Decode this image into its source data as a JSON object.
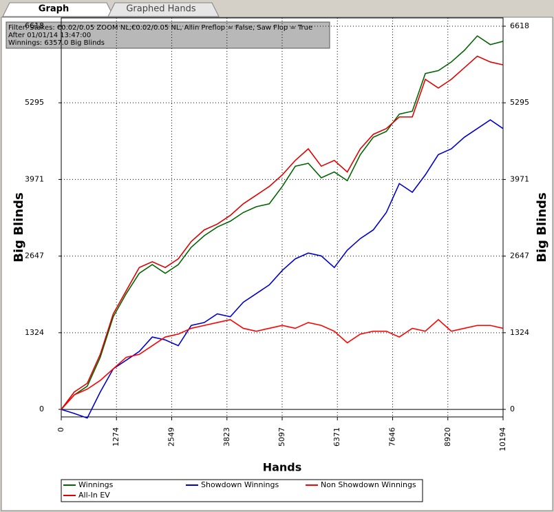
{
  "tabs": [
    "Graph",
    "Graphed Hands"
  ],
  "filter": [
    "Filter: Stakes: €0.02/0.05 ZOOM NL,€0.02/0.05 NL, Allin Preflop = False, Saw Flop = True",
    "After 01/01/14 13:47:00",
    "Winnings: 6357.0 Big Blinds"
  ],
  "chart_data": {
    "type": "line",
    "xlabel": "Hands",
    "ylabel": "Big Blinds",
    "y2label": "Big Blinds",
    "x": [
      0,
      300,
      600,
      900,
      1200,
      1500,
      1800,
      2100,
      2400,
      2700,
      3000,
      3300,
      3600,
      3900,
      4200,
      4500,
      4800,
      5100,
      5400,
      5700,
      6000,
      6300,
      6600,
      6900,
      7200,
      7500,
      7800,
      8100,
      8400,
      8700,
      9000,
      9300,
      9600,
      9900,
      10194
    ],
    "series": [
      {
        "name": "Winnings",
        "color": "#006400",
        "values": [
          0,
          250,
          400,
          900,
          1600,
          2000,
          2350,
          2500,
          2350,
          2500,
          2800,
          3000,
          3150,
          3250,
          3400,
          3500,
          3550,
          3850,
          4200,
          4250,
          4000,
          4100,
          3950,
          4400,
          4700,
          4800,
          5100,
          5150,
          5800,
          5850,
          6000,
          6200,
          6450,
          6300,
          6357
        ]
      },
      {
        "name": "Showdown Winnings",
        "color": "#0000cc",
        "values": [
          0,
          -70,
          -150,
          300,
          700,
          850,
          1000,
          1250,
          1200,
          1100,
          1450,
          1500,
          1650,
          1600,
          1850,
          2000,
          2150,
          2400,
          2600,
          2700,
          2650,
          2450,
          2750,
          2950,
          3100,
          3400,
          3900,
          3750,
          4050,
          4400,
          4500,
          4700,
          4850,
          5000,
          4850
        ]
      },
      {
        "name": "Non Showdown Winnings",
        "color": "#ff0000",
        "values": [
          0,
          250,
          350,
          500,
          700,
          900,
          950,
          1100,
          1250,
          1300,
          1400,
          1450,
          1500,
          1550,
          1400,
          1350,
          1400,
          1450,
          1400,
          1500,
          1450,
          1350,
          1150,
          1300,
          1350,
          1350,
          1250,
          1400,
          1350,
          1550,
          1350,
          1400,
          1450,
          1450,
          1400
        ]
      },
      {
        "name": "All-In EV",
        "color": "#e00000",
        "values": [
          0,
          300,
          450,
          950,
          1650,
          2050,
          2450,
          2550,
          2450,
          2600,
          2900,
          3100,
          3200,
          3350,
          3550,
          3700,
          3850,
          4050,
          4300,
          4500,
          4200,
          4300,
          4100,
          4500,
          4750,
          4850,
          5050,
          5050,
          5700,
          5550,
          5700,
          5900,
          6100,
          6000,
          5950
        ]
      }
    ],
    "xlim": [
      0,
      10194
    ],
    "xticks": [
      0,
      1274,
      2549,
      3823,
      5097,
      6371,
      7646,
      8920,
      10194
    ],
    "ylim": [
      -130,
      6618
    ],
    "yticks": [
      0,
      1324,
      2647,
      3971,
      5295,
      6618
    ],
    "grid": true
  }
}
